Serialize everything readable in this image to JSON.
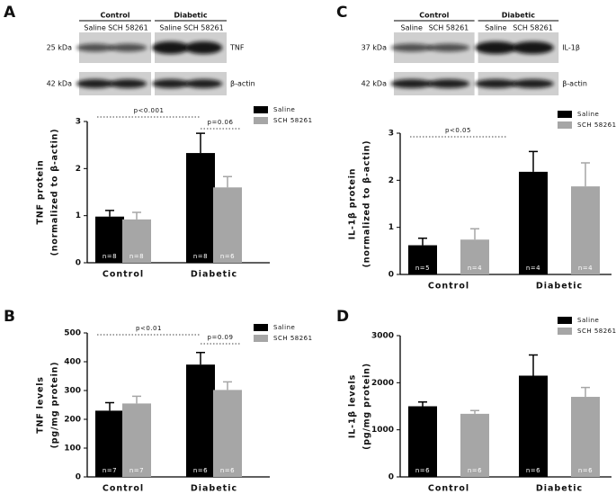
{
  "chart_data": [
    {
      "type": "bar",
      "label": "A",
      "ylabel": [
        "TNF protein",
        "(normalized to β-actin)"
      ],
      "categories": [
        "Control",
        "Diabetic"
      ],
      "series": [
        {
          "name": "Saline",
          "color": "#000000",
          "values": [
            0.98,
            2.33
          ],
          "errors": [
            0.13,
            0.42
          ],
          "n_labels": [
            "n=8",
            "n=8"
          ]
        },
        {
          "name": "SCH 58261",
          "color": "#a6a6a6",
          "values": [
            0.92,
            1.6
          ],
          "errors": [
            0.15,
            0.23
          ],
          "n_labels": [
            "n=8",
            "n=6"
          ]
        }
      ],
      "ylim": [
        0,
        3
      ],
      "yticks": [
        0,
        1,
        2,
        3
      ],
      "annotations": [
        {
          "text": "p<0.001"
        },
        {
          "text": "p=0.06"
        }
      ],
      "blot": {
        "groups": [
          "Control",
          "Diabetic"
        ],
        "lanes": [
          "Saline",
          "SCH 58261",
          "Saline",
          "SCH 58261"
        ],
        "rows": [
          {
            "kda": "25 kDa",
            "protein": "TNF"
          },
          {
            "kda": "42 kDa",
            "protein": "β-actin"
          }
        ]
      }
    },
    {
      "type": "bar",
      "label": "B",
      "ylabel": [
        "TNF levels",
        "(pg/mg protein)"
      ],
      "categories": [
        "Control",
        "Diabetic"
      ],
      "series": [
        {
          "name": "Saline",
          "color": "#000000",
          "values": [
            230,
            390
          ],
          "errors": [
            28,
            42
          ],
          "n_labels": [
            "n=7",
            "n=6"
          ]
        },
        {
          "name": "SCH 58261",
          "color": "#a6a6a6",
          "values": [
            255,
            302
          ],
          "errors": [
            25,
            28
          ],
          "n_labels": [
            "n=7",
            "n=6"
          ]
        }
      ],
      "ylim": [
        0,
        500
      ],
      "yticks": [
        0,
        100,
        200,
        300,
        400,
        500
      ],
      "annotations": [
        {
          "text": "p<0.01"
        },
        {
          "text": "p=0.09"
        }
      ]
    },
    {
      "type": "bar",
      "label": "C",
      "ylabel": [
        "IL-1β protein",
        "(normalized to β-actin)"
      ],
      "categories": [
        "Control",
        "Diabetic"
      ],
      "series": [
        {
          "name": "Saline",
          "color": "#000000",
          "values": [
            0.62,
            2.18
          ],
          "errors": [
            0.15,
            0.43
          ],
          "n_labels": [
            "n=5",
            "n=4"
          ]
        },
        {
          "name": "SCH 58261",
          "color": "#a6a6a6",
          "values": [
            0.74,
            1.87
          ],
          "errors": [
            0.23,
            0.5
          ],
          "n_labels": [
            "n=4",
            "n=4"
          ]
        }
      ],
      "ylim": [
        0,
        3
      ],
      "yticks": [
        0,
        1,
        2,
        3
      ],
      "annotations": [
        {
          "text": "p<0.05"
        }
      ],
      "blot": {
        "groups": [
          "Control",
          "Diabetic"
        ],
        "lanes": [
          "Saline",
          "SCH 58261",
          "Saline",
          "SCH 58261"
        ],
        "rows": [
          {
            "kda": "37 kDa",
            "protein": "IL-1β"
          },
          {
            "kda": "42 kDa",
            "protein": "β-actin"
          }
        ]
      }
    },
    {
      "type": "bar",
      "label": "D",
      "ylabel": [
        "IL-1β levels",
        "(pg/mg protein)"
      ],
      "categories": [
        "Control",
        "Diabetic"
      ],
      "series": [
        {
          "name": "Saline",
          "color": "#000000",
          "values": [
            1500,
            2150
          ],
          "errors": [
            90,
            440
          ],
          "n_labels": [
            "n=6",
            "n=6"
          ]
        },
        {
          "name": "SCH 58261",
          "color": "#a6a6a6",
          "values": [
            1340,
            1700
          ],
          "errors": [
            70,
            200
          ],
          "n_labels": [
            "n=6",
            "n=6"
          ]
        }
      ],
      "ylim": [
        0,
        3000
      ],
      "yticks": [
        0,
        1000,
        2000,
        3000
      ],
      "annotations": []
    }
  ]
}
